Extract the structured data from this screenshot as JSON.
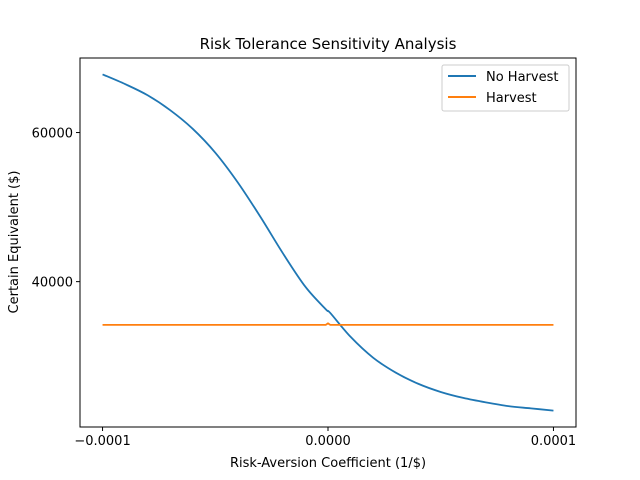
{
  "chart_data": {
    "type": "line",
    "title": "Risk Tolerance Sensitivity Analysis",
    "xlabel": "Risk-Aversion Coefficient (1/$)",
    "ylabel": "Certain Equivalent ($)",
    "xlim": [
      -0.00011,
      0.00011
    ],
    "ylim": [
      20500,
      70000
    ],
    "x_ticks": [
      -0.0001,
      0,
      0.0001
    ],
    "x_tick_labels": [
      "−0.0001",
      "0.0000",
      "0.0001"
    ],
    "y_ticks": [
      40000,
      60000
    ],
    "y_tick_labels": [
      "40000",
      "60000"
    ],
    "grid": false,
    "legend_position": "top-right",
    "series": [
      {
        "name": "No Harvest",
        "color": "#1f77b4",
        "x": [
          -0.0001,
          -9e-05,
          -8e-05,
          -7e-05,
          -6e-05,
          -5e-05,
          -4e-05,
          -3e-05,
          -2e-05,
          -1e-05,
          -1e-06,
          1e-06,
          1e-05,
          2e-05,
          3e-05,
          4e-05,
          5e-05,
          6e-05,
          7e-05,
          8e-05,
          9e-05,
          0.0001
        ],
        "y": [
          67800,
          66500,
          65000,
          63000,
          60500,
          57300,
          53300,
          48700,
          43800,
          39300,
          36300,
          35800,
          32600,
          29800,
          27800,
          26300,
          25200,
          24400,
          23800,
          23300,
          23000,
          22700
        ]
      },
      {
        "name": "Harvest",
        "color": "#ff7f0e",
        "x": [
          -0.0001,
          -1e-06,
          0,
          1e-06,
          0.0001
        ],
        "y": [
          34200,
          34200,
          34400,
          34200,
          34200
        ]
      }
    ]
  }
}
